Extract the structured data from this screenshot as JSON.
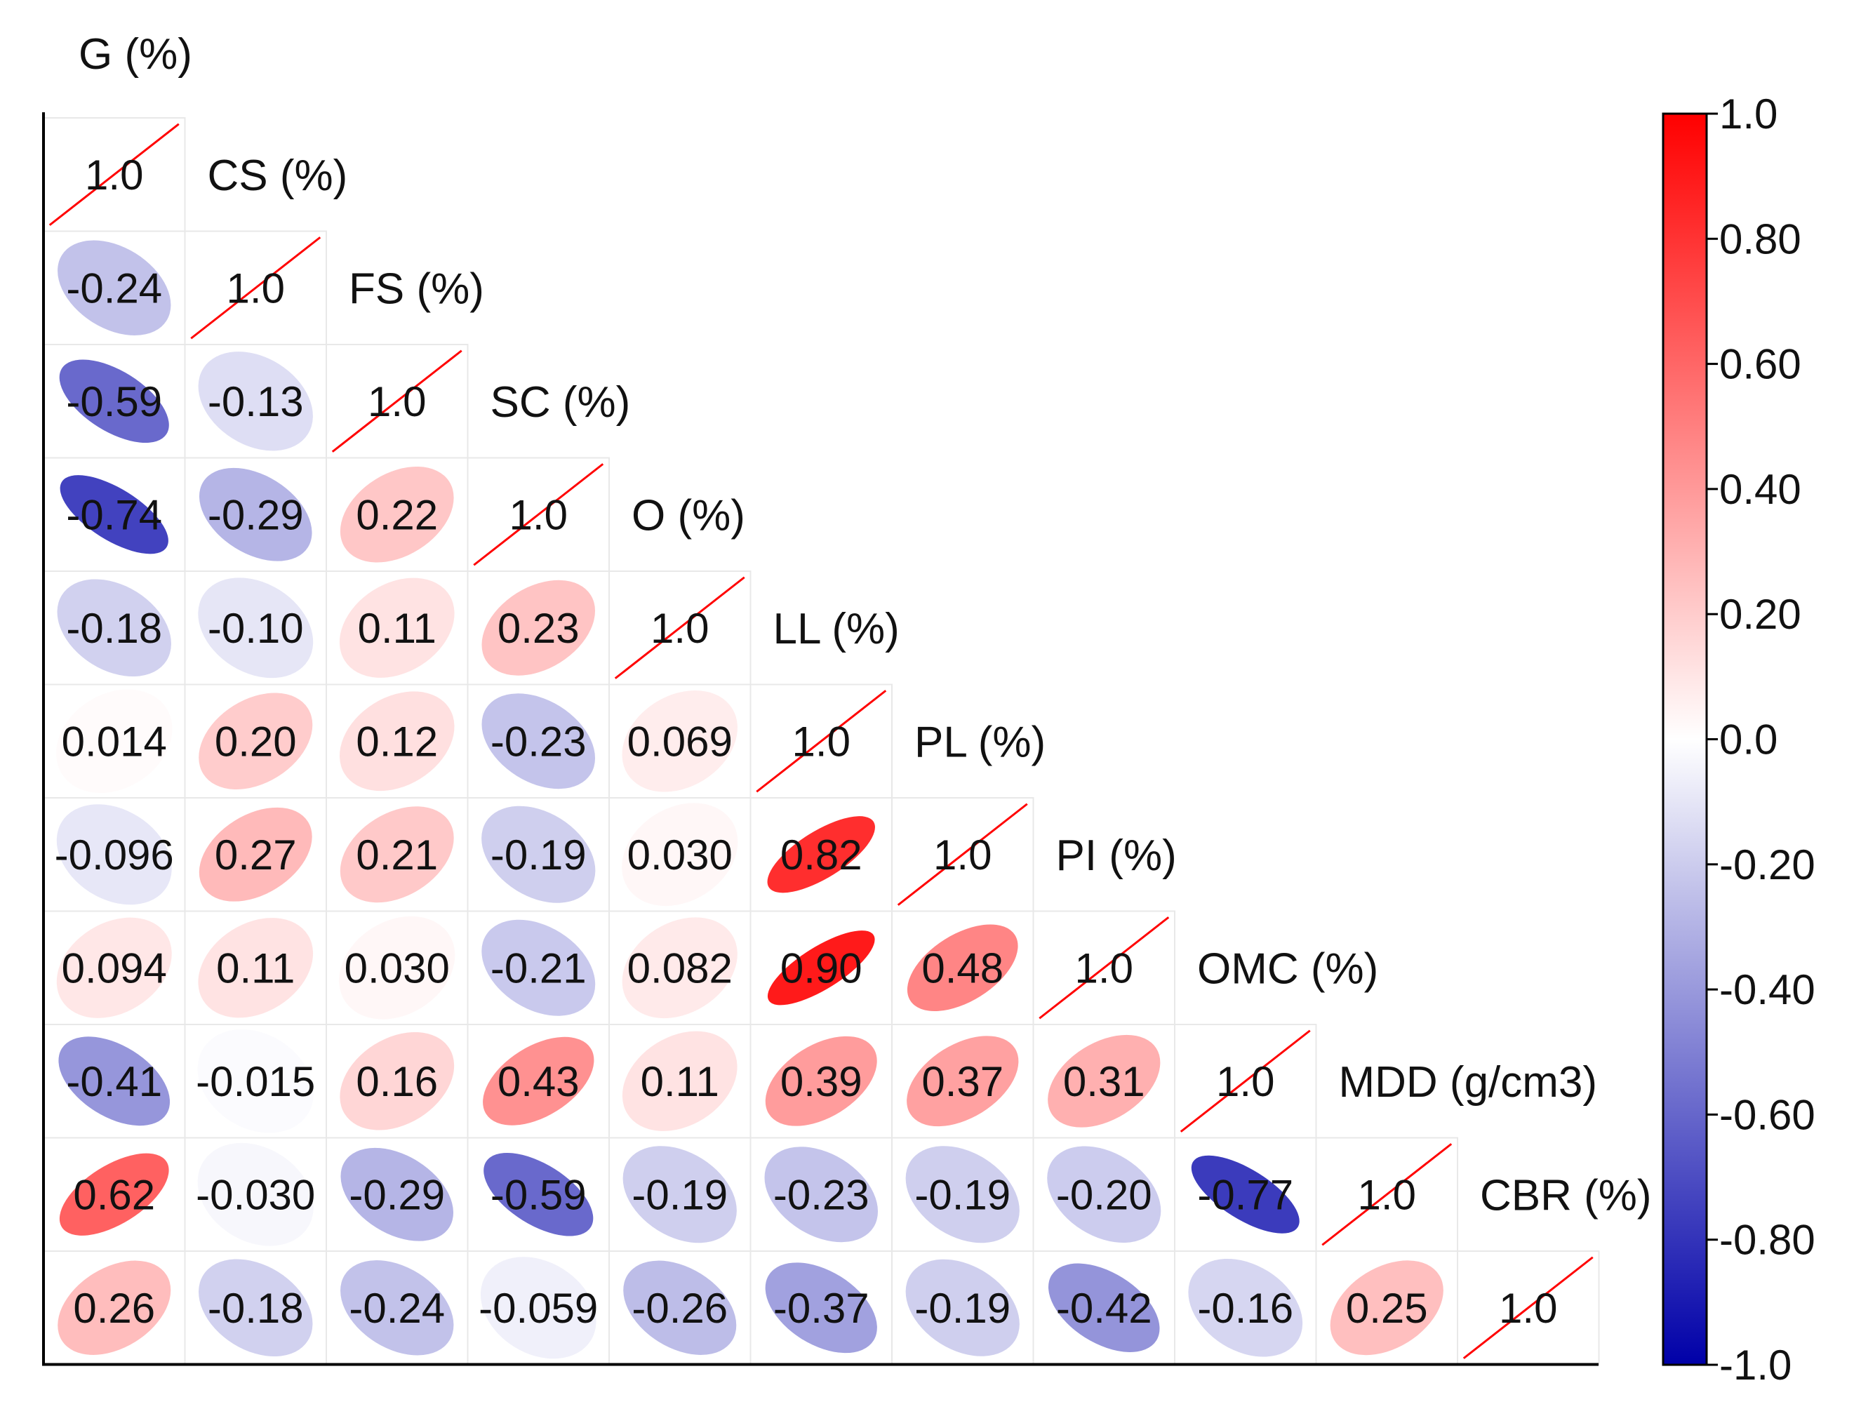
{
  "chart_data": {
    "type": "heatmap",
    "title": "",
    "variables": [
      "G (%)",
      "CS (%)",
      "FS (%)",
      "SC (%)",
      "O (%)",
      "LL (%)",
      "PL (%)",
      "PI (%)",
      "OMC (%)",
      "MDD (g/cm3)",
      "CBR (%)"
    ],
    "matrix_lower": [
      [
        1.0
      ],
      [
        -0.24,
        1.0
      ],
      [
        -0.59,
        -0.13,
        1.0
      ],
      [
        -0.74,
        -0.29,
        0.22,
        1.0
      ],
      [
        -0.18,
        -0.1,
        0.11,
        0.23,
        1.0
      ],
      [
        0.014,
        0.2,
        0.12,
        -0.23,
        0.069,
        1.0
      ],
      [
        -0.096,
        0.27,
        0.21,
        -0.19,
        0.03,
        0.82,
        1.0
      ],
      [
        0.094,
        0.11,
        0.03,
        -0.21,
        0.082,
        0.9,
        0.48,
        1.0
      ],
      [
        -0.41,
        -0.015,
        0.16,
        0.43,
        0.11,
        0.39,
        0.37,
        0.31,
        1.0
      ],
      [
        0.62,
        -0.03,
        -0.29,
        -0.59,
        -0.19,
        -0.23,
        -0.19,
        -0.2,
        -0.77,
        1.0
      ],
      [
        0.26,
        -0.18,
        -0.24,
        -0.059,
        -0.26,
        -0.37,
        -0.19,
        -0.42,
        -0.16,
        0.25,
        1.0
      ]
    ],
    "display_labels": [
      [
        "1.0"
      ],
      [
        "-0.24",
        "1.0"
      ],
      [
        "-0.59",
        "-0.13",
        "1.0"
      ],
      [
        "-0.74",
        "-0.29",
        "0.22",
        "1.0"
      ],
      [
        "-0.18",
        "-0.10",
        "0.11",
        "0.23",
        "1.0"
      ],
      [
        "0.014",
        "0.20",
        "0.12",
        "-0.23",
        "0.069",
        "1.0"
      ],
      [
        "-0.096",
        "0.27",
        "0.21",
        "-0.19",
        "0.030",
        "0.82",
        "1.0"
      ],
      [
        "0.094",
        "0.11",
        "0.030",
        "-0.21",
        "0.082",
        "0.90",
        "0.48",
        "1.0"
      ],
      [
        "-0.41",
        "-0.015",
        "0.16",
        "0.43",
        "0.11",
        "0.39",
        "0.37",
        "0.31",
        "1.0"
      ],
      [
        "0.62",
        "-0.030",
        "-0.29",
        "-0.59",
        "-0.19",
        "-0.23",
        "-0.19",
        "-0.20",
        "-0.77",
        "1.0"
      ],
      [
        "0.26",
        "-0.18",
        "-0.24",
        "-0.059",
        "-0.26",
        "-0.37",
        "-0.19",
        "-0.42",
        "-0.16",
        "0.25",
        "1.0"
      ]
    ],
    "colorbar": {
      "range": [
        -1.0,
        1.0
      ],
      "ticks": [
        1.0,
        0.8,
        0.6,
        0.4,
        0.2,
        0.0,
        -0.2,
        -0.4,
        -0.6,
        -0.8,
        -1.0
      ],
      "tick_labels": [
        "1.0",
        "0.80",
        "0.60",
        "0.40",
        "0.20",
        "0.0",
        "-0.20",
        "-0.40",
        "-0.60",
        "-0.80",
        "-1.0"
      ],
      "position": "right"
    },
    "colors": {
      "positive": "#ff0000",
      "neutral": "#ffffff",
      "negative": "#0000a8",
      "diagonal_line": "#ff0000",
      "grid": "#e8e8e8"
    }
  }
}
